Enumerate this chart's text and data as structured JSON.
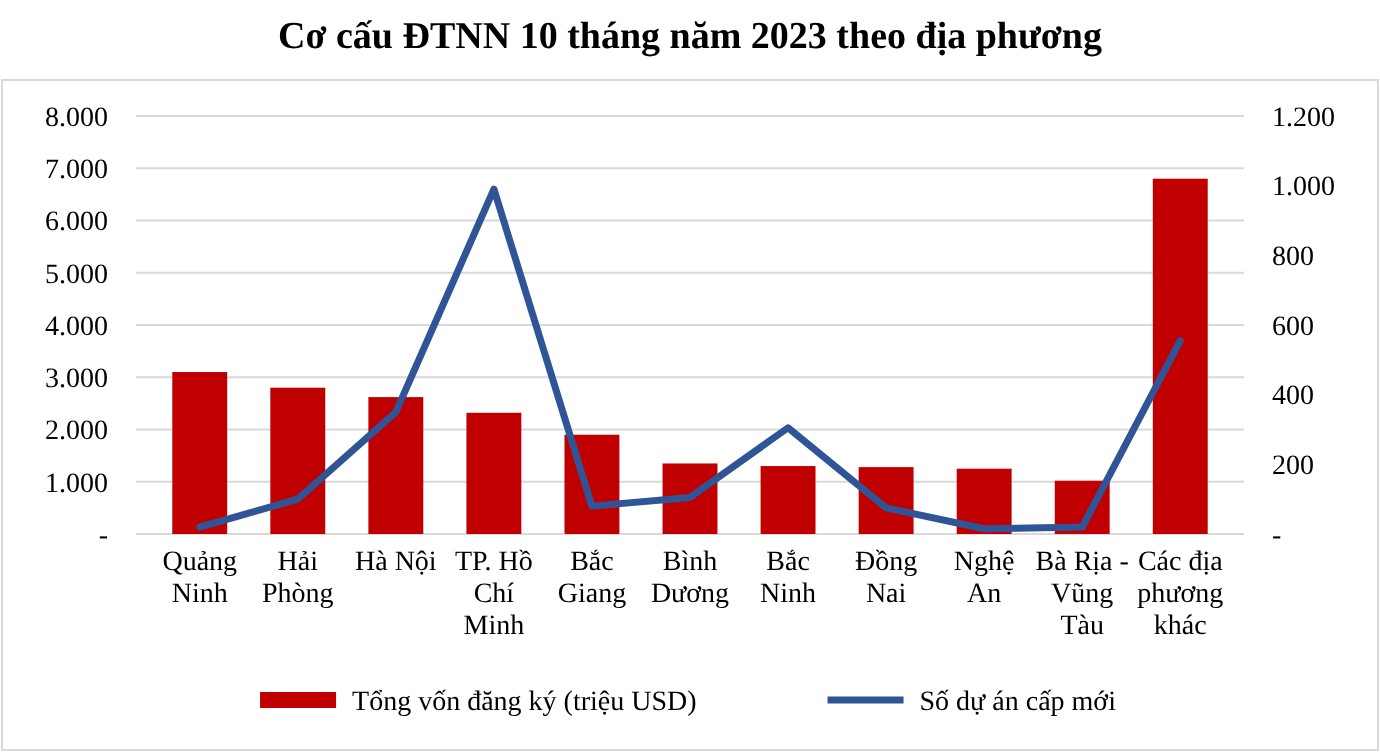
{
  "chart_data": {
    "type": "bar",
    "title": "Cơ cấu ĐTNN 10 tháng năm 2023 theo địa phương",
    "categories": [
      "Quảng Ninh",
      "Hải Phòng",
      "Hà Nội",
      "TP. Hồ Chí Minh",
      "Bắc Giang",
      "Bình Dương",
      "Bắc Ninh",
      "Đồng Nai",
      "Nghệ An",
      "Bà Rịa - Vũng Tàu",
      "Các địa phương khác"
    ],
    "series": [
      {
        "name": "Tổng vốn đăng ký (triệu  USD)",
        "color": "#c00000",
        "values": [
          3100,
          2800,
          2620,
          2320,
          1900,
          1350,
          1300,
          1280,
          1250,
          1020,
          6800
        ]
      },
      {
        "name": "Số dự án cấp mới",
        "type": "line",
        "axis": "y2",
        "color": "#2f5597",
        "values": [
          20,
          100,
          350,
          990,
          80,
          105,
          305,
          75,
          15,
          20,
          555
        ]
      }
    ],
    "ylim": [
      0,
      8000
    ],
    "yticks": [
      {
        "value": 0,
        "label": "-"
      },
      {
        "value": 1000,
        "label": "1.000"
      },
      {
        "value": 2000,
        "label": "2.000"
      },
      {
        "value": 3000,
        "label": "3.000"
      },
      {
        "value": 4000,
        "label": "4.000"
      },
      {
        "value": 5000,
        "label": "5.000"
      },
      {
        "value": 6000,
        "label": "6.000"
      },
      {
        "value": 7000,
        "label": "7.000"
      },
      {
        "value": 8000,
        "label": "8.000"
      }
    ],
    "y2lim": [
      0,
      1200
    ],
    "y2ticks": [
      {
        "value": 0,
        "label": "-"
      },
      200,
      400,
      600,
      800,
      {
        "value": 1000,
        "label": "1.000"
      },
      {
        "value": 1200,
        "label": "1.200"
      }
    ],
    "grid": "y",
    "legend": "bottom",
    "marker": "none",
    "line_style": "solid"
  }
}
